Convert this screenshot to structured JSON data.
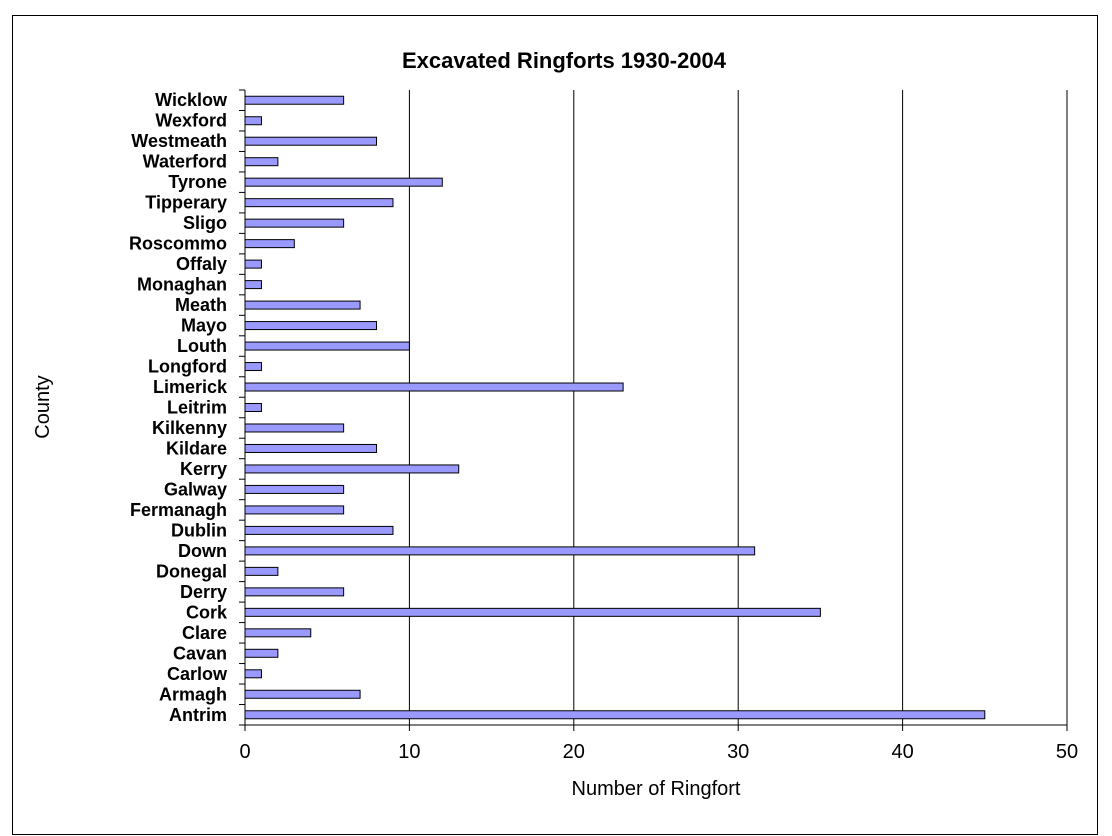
{
  "chart_data": {
    "type": "bar",
    "orientation": "horizontal",
    "title": "Excavated Ringforts 1930-2004",
    "xlabel": "Number of Ringfort",
    "ylabel": "County",
    "xlim": [
      0,
      50
    ],
    "xticks": [
      "0",
      "10",
      "20",
      "30",
      "40",
      "50"
    ],
    "grid": "vertical major gridlines",
    "legend": "none",
    "bar_color": "#9999ff",
    "categories": [
      "Antrim",
      "Armagh",
      "Carlow",
      "Cavan",
      "Clare",
      "Cork",
      "Derry",
      "Donegal",
      "Down",
      "Dublin",
      "Fermanagh",
      "Galway",
      "Kerry",
      "Kildare",
      "Kilkenny",
      "Leitrim",
      "Limerick",
      "Longford",
      "Louth",
      "Mayo",
      "Meath",
      "Monaghan",
      "Offaly",
      "Roscommo",
      "Sligo",
      "Tipperary",
      "Tyrone",
      "Waterford",
      "Westmeath",
      "Wexford",
      "Wicklow"
    ],
    "values": [
      45,
      7,
      1,
      2,
      4,
      35,
      6,
      2,
      31,
      9,
      6,
      6,
      13,
      8,
      6,
      1,
      23,
      1,
      10,
      8,
      7,
      1,
      1,
      3,
      6,
      9,
      12,
      2,
      8,
      1,
      6
    ]
  }
}
